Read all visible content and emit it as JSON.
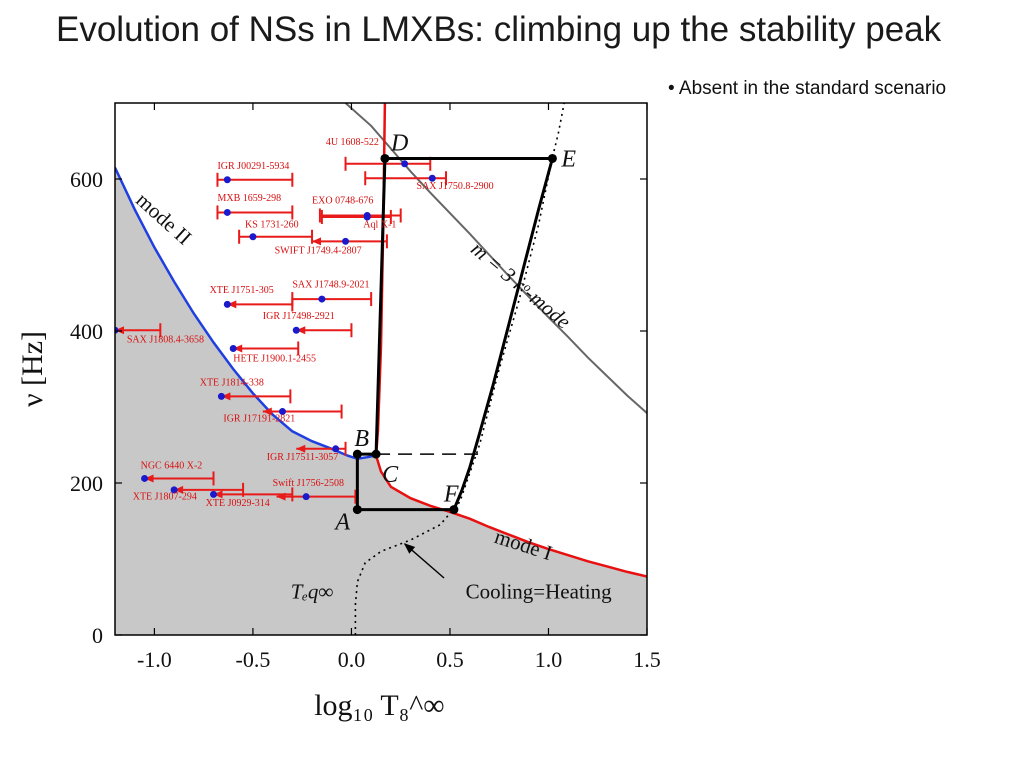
{
  "slide": {
    "title": "Evolution of NSs in LMXBs: climbing up the stability peak",
    "bullet_text": "Absent in the standard scenario"
  },
  "chart_data": {
    "type": "line",
    "xlabel": "log₁₀ T₈^∞",
    "ylabel": "ν [Hz]",
    "xlim": [
      -1.2,
      1.5
    ],
    "ylim": [
      0,
      700
    ],
    "xticks": [
      -1.0,
      -0.5,
      0.0,
      0.5,
      1.0,
      1.5
    ],
    "xtick_labels": [
      "-1.0",
      "-0.5",
      "0.0",
      "0.5",
      "1.0",
      "1.5"
    ],
    "yticks": [
      0,
      200,
      400,
      600
    ],
    "ytick_labels": [
      "0",
      "200",
      "400",
      "600"
    ],
    "colors": {
      "unstable_fill": "#c8c8c8",
      "mode_ii": "#1f3fe0",
      "mode_i": "#e81010",
      "r_mode": "#666666",
      "path": "#000000",
      "source_bar": "#e81a1a",
      "source_dot": "#1a1acc",
      "source_label": "#d81010"
    },
    "curves": [
      {
        "name": "mode II",
        "label": "mode II",
        "points": [
          [
            -1.2,
            615
          ],
          [
            -1.1,
            560
          ],
          [
            -1.0,
            510
          ],
          [
            -0.9,
            465
          ],
          [
            -0.8,
            423
          ],
          [
            -0.7,
            385
          ],
          [
            -0.6,
            350
          ],
          [
            -0.5,
            318
          ],
          [
            -0.4,
            290
          ],
          [
            -0.3,
            268
          ],
          [
            -0.2,
            255
          ],
          [
            -0.1,
            245
          ],
          [
            -0.02,
            236
          ],
          [
            0.03,
            232
          ],
          [
            0.08,
            234
          ],
          [
            0.12,
            236
          ]
        ]
      },
      {
        "name": "mode I",
        "label": "mode I",
        "points": [
          [
            0.125,
            236
          ],
          [
            0.135,
            270
          ],
          [
            0.15,
            380
          ],
          [
            0.16,
            520
          ],
          [
            0.17,
            700
          ]
        ],
        "tail": [
          [
            0.125,
            236
          ],
          [
            0.15,
            215
          ],
          [
            0.2,
            195
          ],
          [
            0.3,
            180
          ],
          [
            0.4,
            170
          ],
          [
            0.5,
            162
          ],
          [
            0.6,
            153
          ],
          [
            0.7,
            142
          ],
          [
            0.8,
            132
          ],
          [
            0.9,
            122
          ],
          [
            1.0,
            113
          ],
          [
            1.1,
            105
          ],
          [
            1.2,
            97
          ],
          [
            1.3,
            90
          ],
          [
            1.4,
            83
          ],
          [
            1.5,
            77
          ]
        ]
      },
      {
        "name": "r-mode m=3",
        "label": "m = 3 rᵒ-mode",
        "points": [
          [
            -0.03,
            700
          ],
          [
            0.1,
            670
          ],
          [
            0.2,
            640
          ],
          [
            0.3,
            610
          ],
          [
            0.4,
            582
          ],
          [
            0.5,
            555
          ],
          [
            0.6,
            528
          ],
          [
            0.7,
            500
          ],
          [
            0.8,
            472
          ],
          [
            0.9,
            445
          ],
          [
            1.0,
            418
          ],
          [
            1.1,
            392
          ],
          [
            1.2,
            365
          ],
          [
            1.3,
            340
          ],
          [
            1.4,
            315
          ],
          [
            1.5,
            292
          ]
        ]
      },
      {
        "name": "Cooling=Heating",
        "label": "Cooling=Heating",
        "points": [
          [
            0.02,
            0
          ],
          [
            0.02,
            40
          ],
          [
            0.03,
            70
          ],
          [
            0.07,
            95
          ],
          [
            0.15,
            110
          ],
          [
            0.3,
            125
          ],
          [
            0.45,
            145
          ],
          [
            0.55,
            175
          ],
          [
            0.65,
            250
          ],
          [
            0.75,
            350
          ],
          [
            0.85,
            440
          ],
          [
            0.95,
            540
          ],
          [
            1.02,
            628
          ],
          [
            1.05,
            660
          ],
          [
            1.08,
            700
          ]
        ]
      }
    ],
    "path_points": [
      {
        "name": "A",
        "x": 0.03,
        "y": 165
      },
      {
        "name": "B",
        "x": 0.03,
        "y": 238
      },
      {
        "name": "C",
        "x": 0.125,
        "y": 238
      },
      {
        "name": "D",
        "x": 0.17,
        "y": 627
      },
      {
        "name": "E",
        "x": 1.02,
        "y": 627
      },
      {
        "name": "F",
        "x": 0.52,
        "y": 165
      }
    ],
    "dashed_line": {
      "from": [
        0.125,
        238
      ],
      "to": [
        0.68,
        238
      ]
    },
    "annotations": [
      {
        "text": "mode II",
        "x": -1.1,
        "y": 570
      },
      {
        "text": "mode I",
        "x": 0.72,
        "y": 122
      },
      {
        "text": "m = 3 rᵒ-mode",
        "x": 0.9,
        "y": 410
      },
      {
        "text": "Cooling=Heating",
        "x": 0.95,
        "y": 48
      },
      {
        "text": "Tₑq∞",
        "x": -0.2,
        "y": 48
      }
    ],
    "sources": [
      {
        "name": "4U 1608-522",
        "nu": 620,
        "x": 0.27,
        "xmin": -0.03,
        "xmax": 0.4,
        "type": "range"
      },
      {
        "name": "IGR J00291-5934",
        "nu": 599,
        "x": -0.63,
        "xmin": -0.68,
        "xmax": -0.3,
        "type": "range"
      },
      {
        "name": "SAX J1750.8-2900",
        "nu": 601,
        "x": 0.41,
        "xmin": 0.07,
        "xmax": 0.48,
        "type": "range"
      },
      {
        "name": "MXB 1659-298",
        "nu": 556,
        "x": -0.63,
        "xmin": -0.68,
        "xmax": -0.3,
        "type": "range"
      },
      {
        "name": "EXO 0748-676",
        "nu": 552,
        "x": 0.08,
        "xmin": -0.16,
        "xmax": 0.25,
        "type": "range"
      },
      {
        "name": "KS 1731-260",
        "nu": 524,
        "x": -0.5,
        "xmin": -0.57,
        "xmax": -0.2,
        "type": "range"
      },
      {
        "name": "Aql X-1",
        "nu": 550,
        "x": 0.08,
        "xmin": -0.15,
        "xmax": 0.2,
        "type": "range"
      },
      {
        "name": "SWIFT J1749.4-2807",
        "nu": 518,
        "x": -0.03,
        "xmin": -0.2,
        "xmax": 0.18,
        "type": "upper"
      },
      {
        "name": "XTE J1751-305",
        "nu": 435,
        "x": -0.63,
        "xmin": -0.63,
        "xmax": -0.3,
        "type": "upper"
      },
      {
        "name": "SAX J1748.9-2021",
        "nu": 442,
        "x": -0.15,
        "xmin": -0.3,
        "xmax": 0.1,
        "type": "range"
      },
      {
        "name": "IGR J17498-2921",
        "nu": 401,
        "x": -0.28,
        "xmin": -0.28,
        "xmax": 0.0,
        "type": "upper"
      },
      {
        "name": "SAX J1808.4-3658",
        "nu": 401,
        "x": -1.2,
        "xmin": -1.2,
        "xmax": -0.97,
        "type": "upper"
      },
      {
        "name": "HETE J1900.1-2455",
        "nu": 377,
        "x": -0.6,
        "xmin": -0.6,
        "xmax": -0.27,
        "type": "upper"
      },
      {
        "name": "XTE J1814-338",
        "nu": 314,
        "x": -0.66,
        "xmin": -0.66,
        "xmax": -0.31,
        "type": "upper"
      },
      {
        "name": "IGR J17191-2821",
        "nu": 294,
        "x": -0.35,
        "xmin": -0.45,
        "xmax": -0.05,
        "type": "upper"
      },
      {
        "name": "IGR J17511-3057",
        "nu": 245,
        "x": -0.08,
        "xmin": -0.28,
        "xmax": -0.03,
        "type": "upper"
      },
      {
        "name": "NGC 6440 X-2",
        "nu": 206,
        "x": -1.05,
        "xmin": -1.05,
        "xmax": -0.7,
        "type": "upper"
      },
      {
        "name": "XTE J1807-294",
        "nu": 191,
        "x": -0.9,
        "xmin": -0.9,
        "xmax": -0.55,
        "type": "upper"
      },
      {
        "name": "XTE J0929-314",
        "nu": 185,
        "x": -0.7,
        "xmin": -0.7,
        "xmax": -0.3,
        "type": "upper"
      },
      {
        "name": "Swift J1756-2508",
        "nu": 182,
        "x": -0.23,
        "xmin": -0.38,
        "xmax": 0.02,
        "type": "upper"
      }
    ]
  }
}
